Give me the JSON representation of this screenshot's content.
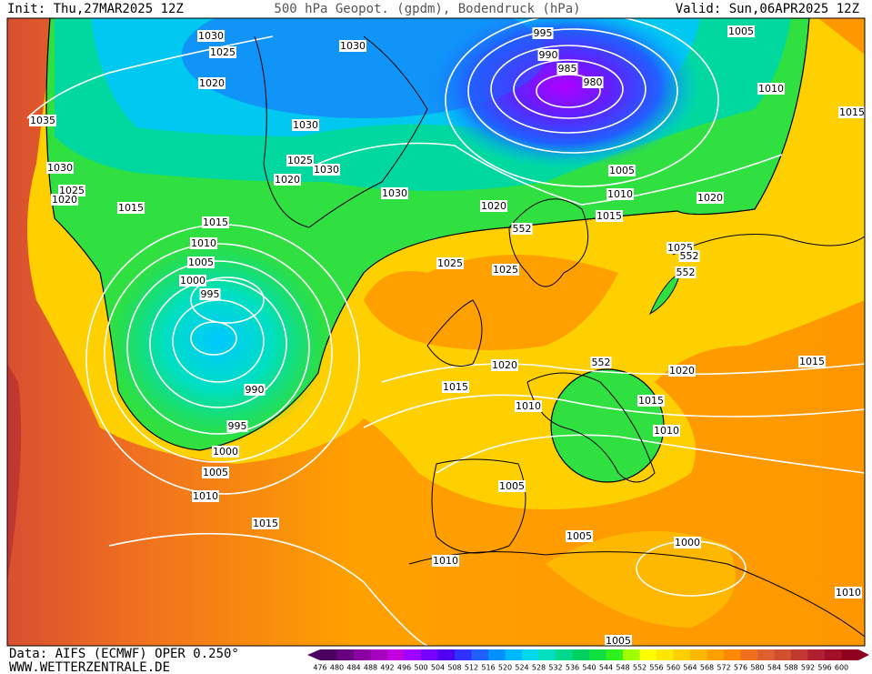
{
  "header": {
    "init": "Init: Thu,27MAR2025 12Z",
    "title": "500 hPa Geopot. (gpdm), Bodendruck (hPa)",
    "valid": "Valid: Sun,06APR2025 12Z"
  },
  "footer": {
    "source": "Data: AIFS (ECMWF) OPER 0.250°",
    "website": "WWW.WETTERZENTRALE.DE"
  },
  "contour_labels": [
    1030,
    1025,
    1030,
    995,
    1005,
    990,
    985,
    980,
    1010,
    1015,
    1020,
    1035,
    1030,
    1025,
    1030,
    1030,
    1020,
    1005,
    1025,
    1020,
    1030,
    1010,
    1020,
    1015,
    1020,
    552,
    1015,
    1015,
    1010,
    1025,
    552,
    1025,
    1025,
    1005,
    552,
    1000,
    995,
    1020,
    552,
    1020,
    1015,
    1015,
    990,
    1015,
    1010,
    1010,
    995,
    1000,
    1005,
    1010,
    1005,
    1015,
    1005,
    1000,
    1010,
    1010,
    1005
  ],
  "colorbar": {
    "ticks": [
      476,
      480,
      484,
      488,
      492,
      496,
      500,
      504,
      508,
      512,
      516,
      520,
      524,
      528,
      532,
      536,
      540,
      544,
      548,
      552,
      556,
      560,
      564,
      568,
      572,
      576,
      580,
      584,
      588,
      592,
      596,
      600
    ],
    "colors": [
      "#4b0060",
      "#6a0080",
      "#8a00a0",
      "#a800c0",
      "#c000e0",
      "#a000ff",
      "#7800ff",
      "#5000f0",
      "#3030ff",
      "#2060ff",
      "#0090ff",
      "#00b8ff",
      "#00d8f0",
      "#00e0c0",
      "#00d890",
      "#00d060",
      "#10e040",
      "#30f020",
      "#a0ff00",
      "#ffff00",
      "#ffe800",
      "#ffd000",
      "#ffb800",
      "#ffa000",
      "#ff8800",
      "#f07020",
      "#e06030",
      "#d05030",
      "#c03830",
      "#b02030",
      "#a01028",
      "#900020"
    ]
  }
}
